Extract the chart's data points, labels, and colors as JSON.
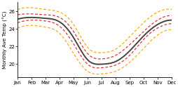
{
  "months": [
    "Jan",
    "Feb",
    "Mar",
    "Apr",
    "May",
    "Jun",
    "Jul",
    "Aug",
    "Sep",
    "Oct",
    "Nov",
    "Dec"
  ],
  "median": [
    25.1,
    25.3,
    25.2,
    24.8,
    23.0,
    20.5,
    20.0,
    20.3,
    21.5,
    23.2,
    24.5,
    25.0
  ],
  "p25": [
    24.7,
    25.0,
    24.9,
    24.3,
    22.3,
    20.0,
    19.6,
    19.9,
    21.0,
    22.8,
    24.1,
    24.6
  ],
  "p75": [
    25.6,
    25.7,
    25.6,
    25.3,
    23.7,
    21.2,
    20.6,
    21.0,
    22.2,
    23.7,
    25.0,
    25.5
  ],
  "min": [
    24.1,
    24.4,
    24.2,
    23.5,
    21.2,
    19.2,
    18.9,
    19.2,
    20.2,
    21.8,
    23.3,
    23.9
  ],
  "max": [
    26.2,
    26.4,
    26.2,
    25.9,
    24.5,
    21.9,
    21.3,
    21.7,
    23.1,
    24.7,
    25.9,
    26.2
  ],
  "ylim": [
    18.5,
    27.0
  ],
  "yticks": [
    20,
    22,
    24,
    26
  ],
  "ylabel": "Monthly Ave Temp (°C)",
  "color_median": "#444444",
  "color_p25_p75": "#dd3333",
  "color_min_max": "#ffaa00",
  "background": "#ffffff",
  "linewidth_median": 1.4,
  "linewidth_percentile": 0.9,
  "linewidth_minmax": 0.9,
  "tick_fontsize": 5.0,
  "ylabel_fontsize": 5.2
}
